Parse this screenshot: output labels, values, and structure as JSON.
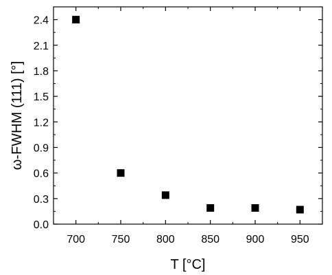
{
  "chart_data": {
    "type": "scatter",
    "xlabel": "T [°C]",
    "ylabel": "ω-FWHM (111) [°]",
    "xlim": [
      675,
      975
    ],
    "ylim": [
      0,
      2.55
    ],
    "xticks": [
      700,
      750,
      800,
      850,
      900,
      950
    ],
    "xtick_labels": [
      "700",
      "750",
      "800",
      "850",
      "900",
      "950"
    ],
    "yticks": [
      0,
      0.3,
      0.6,
      0.9,
      1.2,
      1.5,
      1.8,
      2.1,
      2.4
    ],
    "ytick_labels": [
      "0.0",
      "0.3",
      "0.6",
      "0.9",
      "1.2",
      "1.5",
      "1.8",
      "2.1",
      "2.4"
    ],
    "grid": false,
    "legend": "none",
    "marker": "square",
    "marker_color": "#000000",
    "series": [
      {
        "x": [
          700,
          750,
          800,
          850,
          900,
          950
        ],
        "y": [
          2.4,
          0.6,
          0.34,
          0.19,
          0.19,
          0.17
        ]
      }
    ]
  }
}
